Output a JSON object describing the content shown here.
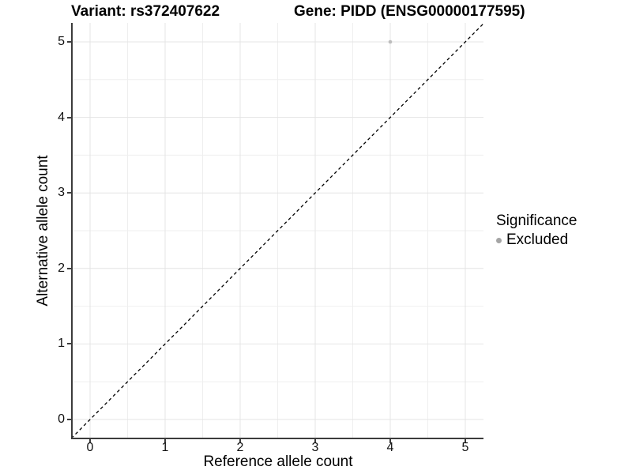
{
  "chart_data": {
    "type": "scatter",
    "title_left": "Variant: rs372407622",
    "title_right": "Gene: PIDD (ENSG00000177595)",
    "xlabel": "Reference allele count",
    "ylabel": "Alternative allele count",
    "xlim": [
      -0.25,
      5.25
    ],
    "ylim": [
      -0.25,
      5.25
    ],
    "xticks": [
      0,
      1,
      2,
      3,
      4,
      5
    ],
    "yticks": [
      0,
      1,
      2,
      3,
      4,
      5
    ],
    "grid": {
      "visible": true,
      "major_step": 1,
      "minor_step": 0.5
    },
    "identity_line": {
      "style": "dashed",
      "from": [
        -0.25,
        -0.25
      ],
      "to": [
        5.25,
        5.25
      ],
      "color": "#000000"
    },
    "series": [
      {
        "name": "Excluded",
        "color": "#bdbdbd",
        "points": [
          {
            "x": 4,
            "y": 5
          }
        ]
      }
    ],
    "legend": {
      "title": "Significance",
      "position": "right",
      "items": [
        {
          "label": "Excluded",
          "color": "#a5a5a5",
          "marker": "circle"
        }
      ]
    },
    "colors": {
      "background": "#ffffff",
      "grid_major": "#e4e4e4",
      "grid_minor": "#efefef",
      "axis": "#3c3c3c",
      "tick_text": "#111111"
    }
  }
}
